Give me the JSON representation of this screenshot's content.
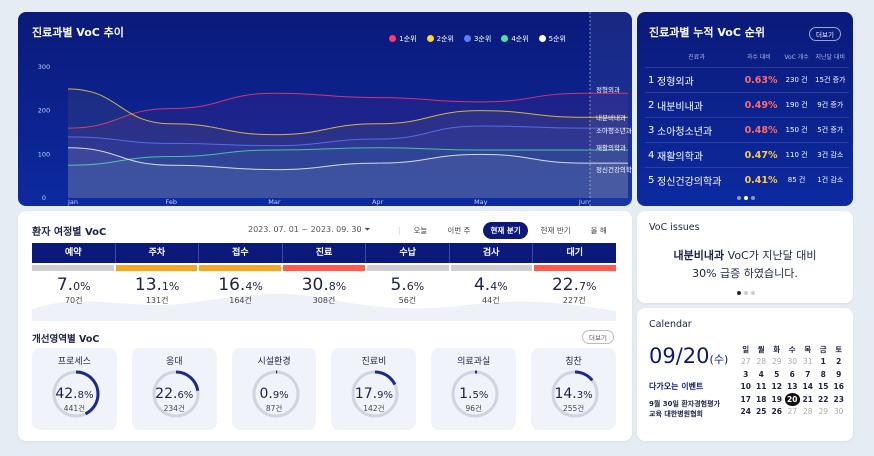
{
  "trend": {
    "title": "진료과별 VoC 추이",
    "legend": [
      {
        "label": "1순위",
        "color": "#ff3b6b"
      },
      {
        "label": "2순위",
        "color": "#ffd43b"
      },
      {
        "label": "3순위",
        "color": "#5b7cff"
      },
      {
        "label": "4순위",
        "color": "#4be3a5"
      },
      {
        "label": "5순위",
        "color": "#ffffff"
      }
    ],
    "current_labels": [
      "정형외과",
      "내분비내과",
      "소아청소년과",
      "재활의학과",
      "정신건강의학과"
    ]
  },
  "chart_data": {
    "type": "area",
    "x": [
      "Jan",
      "Feb",
      "Mar",
      "Apr",
      "May",
      "Jun"
    ],
    "ylim": [
      0,
      300
    ],
    "yticks": [
      0,
      100,
      200,
      300
    ],
    "series": [
      {
        "name": "1순위",
        "color": "#ff3b6b",
        "values": [
          160,
          205,
          240,
          230,
          220,
          240
        ]
      },
      {
        "name": "2순위",
        "color": "#ffd43b",
        "values": [
          250,
          170,
          145,
          170,
          200,
          185
        ]
      },
      {
        "name": "3순위",
        "color": "#5b7cff",
        "values": [
          140,
          125,
          120,
          135,
          165,
          160
        ]
      },
      {
        "name": "4순위",
        "color": "#4be3a5",
        "values": [
          75,
          95,
          110,
          115,
          110,
          110
        ]
      },
      {
        "name": "5순위",
        "color": "#ffffff",
        "values": [
          115,
          75,
          65,
          80,
          100,
          80
        ]
      }
    ]
  },
  "rank": {
    "title": "진료과별 누적 VoC 순위",
    "more": "더보기",
    "headers": [
      "진료과",
      "과수 대비",
      "VoC 개수",
      "지난달 대비"
    ],
    "rows": [
      {
        "rank": "1",
        "dept": "정형외과",
        "ratio": "0.63%",
        "count": "230 건",
        "change": "15건 증가",
        "yellow": false
      },
      {
        "rank": "2",
        "dept": "내분비내과",
        "ratio": "0.49%",
        "count": "190 건",
        "change": "9건 증가",
        "yellow": false
      },
      {
        "rank": "3",
        "dept": "소아청소년과",
        "ratio": "0.48%",
        "count": "150 건",
        "change": "5건 증가",
        "yellow": false
      },
      {
        "rank": "4",
        "dept": "재활의학과",
        "ratio": "0.47%",
        "count": "110 건",
        "change": "3건 감소",
        "yellow": true
      },
      {
        "rank": "5",
        "dept": "정신건강의학과",
        "ratio": "0.41%",
        "count": "85 건",
        "change": "1건 감소",
        "yellow": true
      }
    ]
  },
  "trip": {
    "title": "환자 여정별 VoC",
    "range": "2023. 07. 01 ~ 2023. 09. 30",
    "tabs": [
      "오늘",
      "이번 주",
      "현재 분기",
      "현재 반기",
      "올 해"
    ],
    "active_tab": 2,
    "steps": [
      {
        "name": "예약",
        "pct": "7.",
        "dec": "0%",
        "count": "70건",
        "color": "#cfcfcf"
      },
      {
        "name": "주차",
        "pct": "13.",
        "dec": "1%",
        "count": "131건",
        "color": "#f5a623"
      },
      {
        "name": "접수",
        "pct": "16.",
        "dec": "4%",
        "count": "164건",
        "color": "#f5a623"
      },
      {
        "name": "진료",
        "pct": "30.",
        "dec": "8%",
        "count": "308건",
        "color": "#ff5a4a"
      },
      {
        "name": "수납",
        "pct": "5.",
        "dec": "6%",
        "count": "56건",
        "color": "#cfcfcf"
      },
      {
        "name": "검사",
        "pct": "4.",
        "dec": "4%",
        "count": "44건",
        "color": "#cfcfcf"
      },
      {
        "name": "대기",
        "pct": "22.",
        "dec": "7%",
        "count": "227건",
        "color": "#ff5a4a"
      }
    ],
    "sub_title": "개선영역별 VoC",
    "more": "더보기",
    "areas": [
      {
        "name": "프로세스",
        "pct": "42.",
        "dec": "8%",
        "count": "441건",
        "ratio": 0.428
      },
      {
        "name": "응대",
        "pct": "22.",
        "dec": "6%",
        "count": "234건",
        "ratio": 0.226
      },
      {
        "name": "시설환경",
        "pct": "0.",
        "dec": "9%",
        "count": "87건",
        "ratio": 0.009
      },
      {
        "name": "진료비",
        "pct": "17.",
        "dec": "9%",
        "count": "142건",
        "ratio": 0.179
      },
      {
        "name": "의료과실",
        "pct": "1.",
        "dec": "5%",
        "count": "96건",
        "ratio": 0.015
      },
      {
        "name": "칭찬",
        "pct": "14.",
        "dec": "3%",
        "count": "255건",
        "ratio": 0.143
      }
    ]
  },
  "issue": {
    "title": "VoC issues",
    "line1_bold": "내분비내과",
    "line1_rest": " VoC가 지난달 대비",
    "line2": "30% 급증 하였습니다."
  },
  "calendar": {
    "title": "Calendar",
    "date": "09/20",
    "weekday": "(수)",
    "event_title": "다가오는 이벤트",
    "event_line1": "9월 30일 환자경험평가",
    "event_line2": "교육 대한병원협회",
    "headers": [
      "일",
      "월",
      "화",
      "수",
      "목",
      "금",
      "토"
    ],
    "weeks": [
      [
        "27",
        "28",
        "29",
        "30",
        "31",
        "1",
        "2"
      ],
      [
        "3",
        "4",
        "5",
        "6",
        "7",
        "8",
        "9"
      ],
      [
        "10",
        "11",
        "12",
        "13",
        "14",
        "15",
        "16"
      ],
      [
        "17",
        "18",
        "19",
        "20",
        "21",
        "22",
        "23"
      ],
      [
        "24",
        "25",
        "26",
        "27",
        "28",
        "29",
        "30"
      ]
    ],
    "today": "20"
  }
}
